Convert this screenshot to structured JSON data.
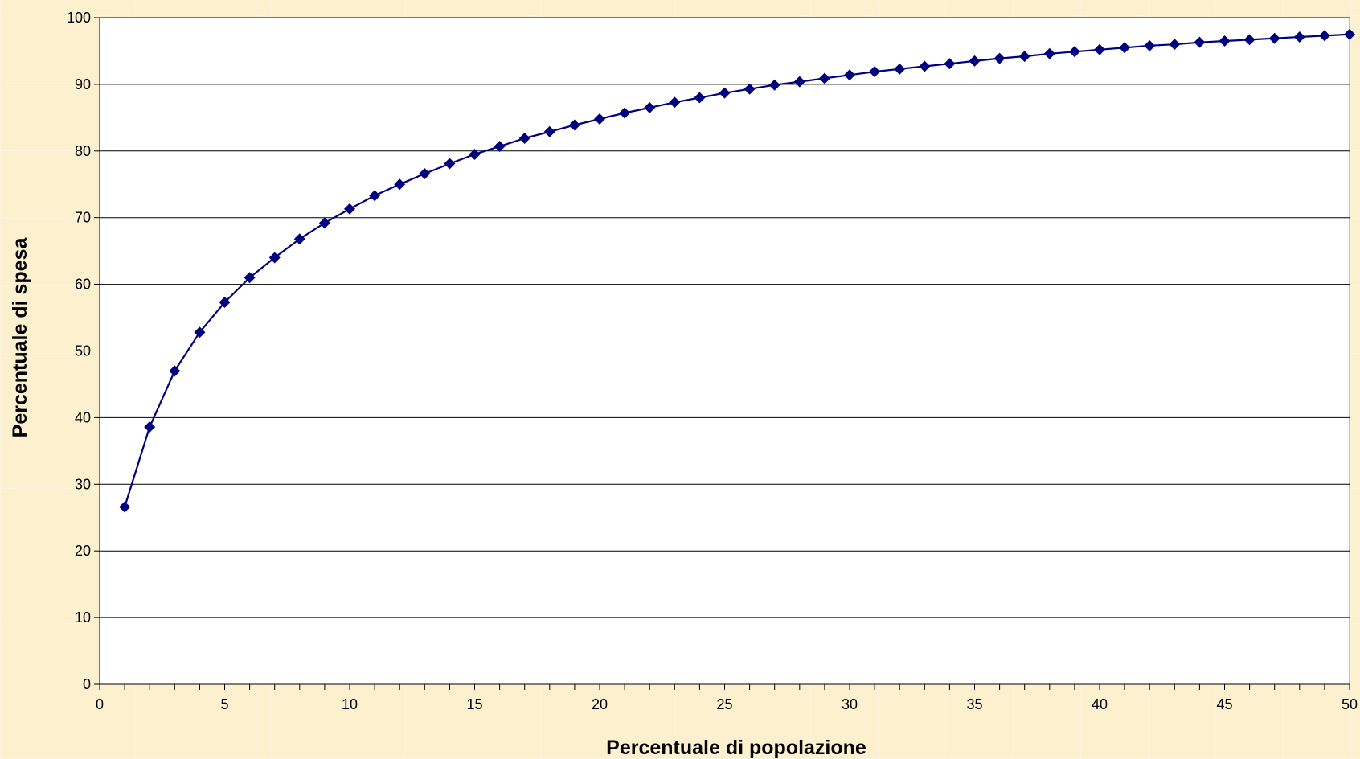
{
  "chart_data": {
    "type": "line",
    "xlabel": "Percentuale di popolazione",
    "ylabel": "Percentuale di spesa",
    "xlim": [
      0,
      50
    ],
    "ylim": [
      0,
      100
    ],
    "x_ticks": [
      "0",
      "5",
      "10",
      "15",
      "20",
      "25",
      "30",
      "35",
      "40",
      "45",
      "50"
    ],
    "y_ticks": [
      "0",
      "10",
      "20",
      "30",
      "40",
      "50",
      "60",
      "70",
      "80",
      "90",
      "100"
    ],
    "grid": "horizontal",
    "marker": "diamond",
    "colors": {
      "series": "#00007f",
      "grid": "#000000",
      "plot_background": "#ffffff",
      "page_background": "#fdf0cf"
    },
    "series": [
      {
        "x": [
          1,
          2,
          3,
          4,
          5,
          6,
          7,
          8,
          9,
          10,
          11,
          12,
          13,
          14,
          15,
          16,
          17,
          18,
          19,
          20,
          21,
          22,
          23,
          24,
          25,
          26,
          27,
          28,
          29,
          30,
          31,
          32,
          33,
          34,
          35,
          36,
          37,
          38,
          39,
          40,
          41,
          42,
          43,
          44,
          45,
          46,
          47,
          48,
          49,
          50
        ],
        "values": [
          26.6,
          38.6,
          47.0,
          52.8,
          57.3,
          61.0,
          64.0,
          66.8,
          69.2,
          71.3,
          73.3,
          75.0,
          76.6,
          78.1,
          79.5,
          80.7,
          81.9,
          82.9,
          83.9,
          84.8,
          85.7,
          86.5,
          87.3,
          88.0,
          88.7,
          89.3,
          89.9,
          90.4,
          90.9,
          91.4,
          91.9,
          92.3,
          92.7,
          93.1,
          93.5,
          93.9,
          94.2,
          94.6,
          94.9,
          95.2,
          95.5,
          95.8,
          96.0,
          96.3,
          96.5,
          96.7,
          96.9,
          97.1,
          97.3,
          97.5
        ]
      }
    ]
  }
}
